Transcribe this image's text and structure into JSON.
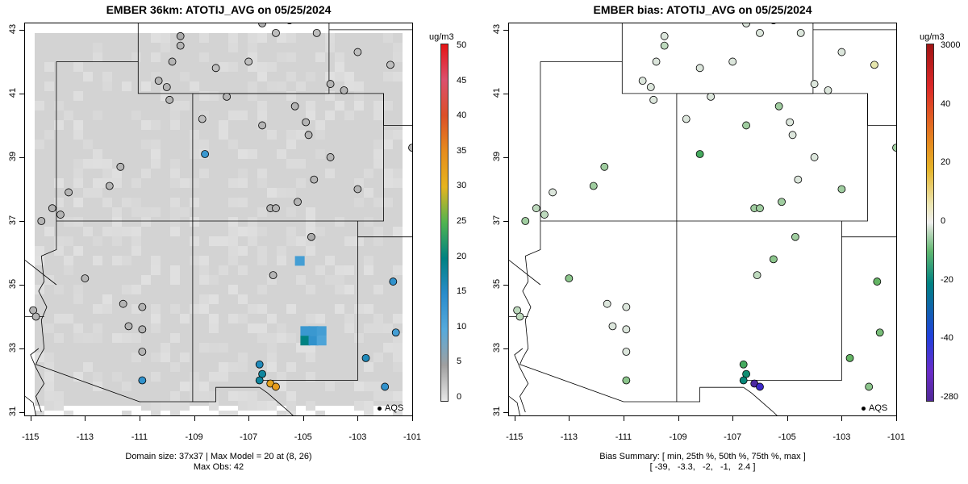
{
  "left": {
    "title": "EMBER 36km: ATOTIJ_AVG on 05/25/2024",
    "footer_line1": "Domain size: 37x37 | Max Model = 20 at (8, 26)",
    "footer_line2": "Max Obs: 42",
    "cbar_unit": "ug/m3",
    "cbar_ticks": [
      "50",
      "45",
      "40",
      "35",
      "30",
      "25",
      "20",
      "15",
      "10",
      "5",
      "0"
    ],
    "legend_label": "AQS"
  },
  "right": {
    "title": "EMBER bias: ATOTIJ_AVG on 05/25/2024",
    "footer_line1": "Bias Summary: [ min, 25th %, 50th %, 75th %, max ]",
    "footer_line2": "[ -39,   -3.3,   -2,   -1,   2.4 ]",
    "cbar_unit": "ug/m3",
    "cbar_ticks": [
      "3000",
      "40",
      "20",
      "0",
      "-20",
      "-40",
      "-280"
    ],
    "legend_label": "AQS"
  },
  "axes": {
    "x_ticks": [
      "-115",
      "-113",
      "-111",
      "-109",
      "-107",
      "-105",
      "-103",
      "-101"
    ],
    "y_ticks": [
      "43",
      "41",
      "39",
      "37",
      "35",
      "33",
      "31"
    ],
    "lon_range": [
      -115.2,
      -101
    ],
    "lat_range": [
      30.9,
      43.2
    ]
  },
  "colors": {
    "model_background": "#d3d3d3",
    "state_lines": "#000000",
    "site_default": "#999999",
    "bias_light": "#e0e8e0",
    "bias_green": "#7fc97f"
  },
  "map_data": {
    "model_hotspots": [
      {
        "lon": -105.3,
        "lat": 35.9,
        "value": 12
      },
      {
        "lon": -105.1,
        "lat": 33.7,
        "value": 13
      },
      {
        "lon": -104.8,
        "lat": 33.7,
        "value": 13
      },
      {
        "lon": -104.5,
        "lat": 33.7,
        "value": 12
      },
      {
        "lon": -105.1,
        "lat": 33.4,
        "value": 20
      },
      {
        "lon": -104.8,
        "lat": 33.4,
        "value": 14
      },
      {
        "lon": -104.5,
        "lat": 33.4,
        "value": 11
      }
    ],
    "sites_model": [
      {
        "lon": -109.5,
        "lat": 42.8,
        "value": 4
      },
      {
        "lon": -109.5,
        "lat": 42.5,
        "value": 3
      },
      {
        "lon": -109.8,
        "lat": 42.0,
        "value": 3
      },
      {
        "lon": -110.3,
        "lat": 41.4,
        "value": 3
      },
      {
        "lon": -110.0,
        "lat": 41.2,
        "value": 3
      },
      {
        "lon": -109.9,
        "lat": 40.8,
        "value": 3
      },
      {
        "lon": -108.2,
        "lat": 41.8,
        "value": 2
      },
      {
        "lon": -107.8,
        "lat": 40.9,
        "value": 3
      },
      {
        "lon": -106.5,
        "lat": 43.2,
        "value": 3
      },
      {
        "lon": -105.5,
        "lat": 43.3,
        "value": 3
      },
      {
        "lon": -104.5,
        "lat": 42.9,
        "value": 2
      },
      {
        "lon": -106.0,
        "lat": 42.9,
        "value": 2
      },
      {
        "lon": -107.0,
        "lat": 42.0,
        "value": 2
      },
      {
        "lon": -103.0,
        "lat": 42.3,
        "value": 2
      },
      {
        "lon": -101.8,
        "lat": 41.9,
        "value": 2
      },
      {
        "lon": -104.0,
        "lat": 41.3,
        "value": 3
      },
      {
        "lon": -103.5,
        "lat": 41.1,
        "value": 3
      },
      {
        "lon": -108.7,
        "lat": 40.2,
        "value": 2
      },
      {
        "lon": -106.5,
        "lat": 40.0,
        "value": 3
      },
      {
        "lon": -105.3,
        "lat": 40.6,
        "value": 3
      },
      {
        "lon": -104.9,
        "lat": 40.1,
        "value": 3
      },
      {
        "lon": -104.8,
        "lat": 39.7,
        "value": 3
      },
      {
        "lon": -104.0,
        "lat": 39.0,
        "value": 3
      },
      {
        "lon": -104.6,
        "lat": 38.3,
        "value": 3
      },
      {
        "lon": -103.0,
        "lat": 38.0,
        "value": 3
      },
      {
        "lon": -101.0,
        "lat": 39.3,
        "value": 3
      },
      {
        "lon": -108.6,
        "lat": 39.1,
        "value": 13
      },
      {
        "lon": -111.7,
        "lat": 38.7,
        "value": 3
      },
      {
        "lon": -112.1,
        "lat": 38.1,
        "value": 3
      },
      {
        "lon": -113.6,
        "lat": 37.9,
        "value": 3
      },
      {
        "lon": -114.2,
        "lat": 37.4,
        "value": 3
      },
      {
        "lon": -113.9,
        "lat": 37.2,
        "value": 3
      },
      {
        "lon": -114.6,
        "lat": 37.0,
        "value": 3
      },
      {
        "lon": -106.2,
        "lat": 37.4,
        "value": 3
      },
      {
        "lon": -106.0,
        "lat": 37.4,
        "value": 3
      },
      {
        "lon": -105.2,
        "lat": 37.6,
        "value": 3
      },
      {
        "lon": -104.7,
        "lat": 36.5,
        "value": 4
      },
      {
        "lon": -106.1,
        "lat": 35.3,
        "value": 3
      },
      {
        "lon": -113.0,
        "lat": 35.2,
        "value": 3
      },
      {
        "lon": -111.6,
        "lat": 34.4,
        "value": 3
      },
      {
        "lon": -110.9,
        "lat": 34.3,
        "value": 3
      },
      {
        "lon": -111.4,
        "lat": 33.7,
        "value": 3
      },
      {
        "lon": -110.9,
        "lat": 33.6,
        "value": 3
      },
      {
        "lon": -110.9,
        "lat": 32.9,
        "value": 3
      },
      {
        "lon": -110.9,
        "lat": 32.0,
        "value": 14
      },
      {
        "lon": -114.9,
        "lat": 34.2,
        "value": 3
      },
      {
        "lon": -114.8,
        "lat": 34.0,
        "value": 3
      },
      {
        "lon": -106.6,
        "lat": 32.5,
        "value": 16
      },
      {
        "lon": -106.5,
        "lat": 32.2,
        "value": 18
      },
      {
        "lon": -106.6,
        "lat": 32.0,
        "value": 18
      },
      {
        "lon": -106.2,
        "lat": 31.9,
        "value": 32
      },
      {
        "lon": -106.0,
        "lat": 31.8,
        "value": 33
      },
      {
        "lon": -102.7,
        "lat": 32.7,
        "value": 16
      },
      {
        "lon": -101.7,
        "lat": 35.1,
        "value": 14
      },
      {
        "lon": -101.6,
        "lat": 33.5,
        "value": 12
      },
      {
        "lon": -102.0,
        "lat": 31.8,
        "value": 14
      }
    ],
    "sites_bias": [
      {
        "lon": -109.5,
        "lat": 42.8,
        "value": -1
      },
      {
        "lon": -109.5,
        "lat": 42.5,
        "value": -2
      },
      {
        "lon": -109.8,
        "lat": 42.0,
        "value": -1
      },
      {
        "lon": -110.3,
        "lat": 41.4,
        "value": -1
      },
      {
        "lon": -110.0,
        "lat": 41.2,
        "value": -1
      },
      {
        "lon": -109.9,
        "lat": 40.8,
        "value": -1
      },
      {
        "lon": -108.2,
        "lat": 41.8,
        "value": -1
      },
      {
        "lon": -107.8,
        "lat": 40.9,
        "value": -1
      },
      {
        "lon": -106.5,
        "lat": 43.2,
        "value": -1
      },
      {
        "lon": -105.5,
        "lat": 43.3,
        "value": -1
      },
      {
        "lon": -104.5,
        "lat": 42.9,
        "value": -1
      },
      {
        "lon": -106.0,
        "lat": 42.9,
        "value": -1
      },
      {
        "lon": -107.0,
        "lat": 42.0,
        "value": -1
      },
      {
        "lon": -103.0,
        "lat": 42.3,
        "value": -1
      },
      {
        "lon": -101.8,
        "lat": 41.9,
        "value": 2.4
      },
      {
        "lon": -104.0,
        "lat": 41.3,
        "value": -1
      },
      {
        "lon": -103.5,
        "lat": 41.1,
        "value": -1
      },
      {
        "lon": -108.7,
        "lat": 40.2,
        "value": -1
      },
      {
        "lon": -106.5,
        "lat": 40.0,
        "value": -3
      },
      {
        "lon": -105.3,
        "lat": 40.6,
        "value": -3
      },
      {
        "lon": -104.9,
        "lat": 40.1,
        "value": -1
      },
      {
        "lon": -104.8,
        "lat": 39.7,
        "value": -1
      },
      {
        "lon": -104.0,
        "lat": 39.0,
        "value": -1
      },
      {
        "lon": -104.6,
        "lat": 38.3,
        "value": -1
      },
      {
        "lon": -103.0,
        "lat": 38.0,
        "value": -3
      },
      {
        "lon": -101.0,
        "lat": 39.3,
        "value": -3
      },
      {
        "lon": -108.2,
        "lat": 39.1,
        "value": -8
      },
      {
        "lon": -111.7,
        "lat": 38.7,
        "value": -3
      },
      {
        "lon": -112.1,
        "lat": 38.1,
        "value": -3
      },
      {
        "lon": -113.6,
        "lat": 37.9,
        "value": -1
      },
      {
        "lon": -114.2,
        "lat": 37.4,
        "value": -2
      },
      {
        "lon": -113.9,
        "lat": 37.2,
        "value": -2
      },
      {
        "lon": -114.6,
        "lat": 37.0,
        "value": -3
      },
      {
        "lon": -106.2,
        "lat": 37.4,
        "value": -3
      },
      {
        "lon": -106.0,
        "lat": 37.4,
        "value": -3
      },
      {
        "lon": -105.2,
        "lat": 37.6,
        "value": -3
      },
      {
        "lon": -104.7,
        "lat": 36.5,
        "value": -3
      },
      {
        "lon": -105.5,
        "lat": 35.8,
        "value": -4
      },
      {
        "lon": -106.1,
        "lat": 35.3,
        "value": -2
      },
      {
        "lon": -113.0,
        "lat": 35.2,
        "value": -4
      },
      {
        "lon": -111.6,
        "lat": 34.4,
        "value": -1
      },
      {
        "lon": -110.9,
        "lat": 34.3,
        "value": -1
      },
      {
        "lon": -111.4,
        "lat": 33.7,
        "value": -1
      },
      {
        "lon": -110.9,
        "lat": 33.6,
        "value": -1
      },
      {
        "lon": -110.9,
        "lat": 32.9,
        "value": -1
      },
      {
        "lon": -110.9,
        "lat": 32.0,
        "value": -4
      },
      {
        "lon": -114.9,
        "lat": 34.2,
        "value": -2
      },
      {
        "lon": -114.8,
        "lat": 34.0,
        "value": -2
      },
      {
        "lon": -106.6,
        "lat": 32.5,
        "value": -8
      },
      {
        "lon": -106.5,
        "lat": 32.2,
        "value": -16
      },
      {
        "lon": -106.6,
        "lat": 32.0,
        "value": -18
      },
      {
        "lon": -106.2,
        "lat": 31.9,
        "value": -39
      },
      {
        "lon": -106.0,
        "lat": 31.8,
        "value": -35
      },
      {
        "lon": -102.7,
        "lat": 32.7,
        "value": -6
      },
      {
        "lon": -101.7,
        "lat": 35.1,
        "value": -6
      },
      {
        "lon": -101.6,
        "lat": 33.5,
        "value": -5
      },
      {
        "lon": -102.0,
        "lat": 31.8,
        "value": -4
      }
    ]
  }
}
